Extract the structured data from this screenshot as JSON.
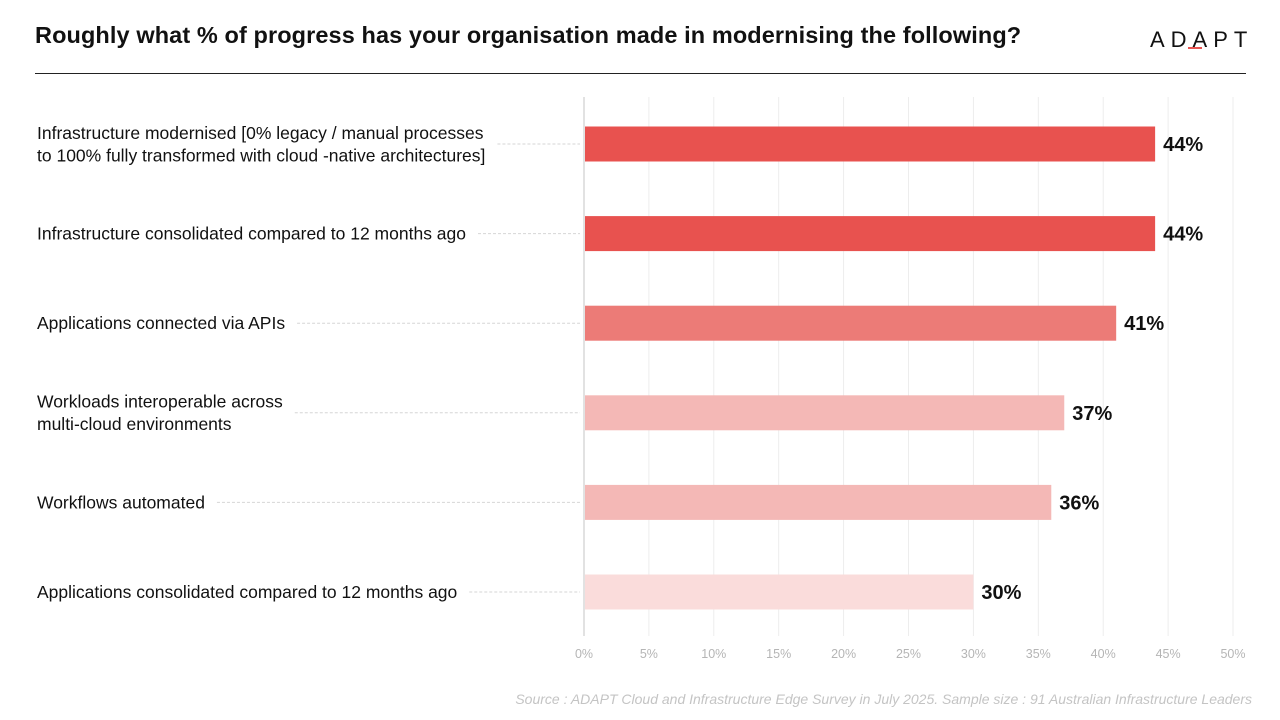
{
  "header": {
    "title": "Roughly what % of progress has your organisation made in modernising the following?",
    "logo": "ADAPT"
  },
  "chart_data": {
    "type": "bar",
    "orientation": "horizontal",
    "title": "Roughly what % of progress has your organisation made in modernising the following?",
    "categories": [
      [
        "Infrastructure modernised [0% legacy / manual processes",
        "to 100% fully transformed with cloud -native architectures]"
      ],
      [
        "Infrastructure consolidated compared to 12 months ago"
      ],
      [
        "Applications connected via APIs"
      ],
      [
        "Workloads interoperable across",
        "multi-cloud environments"
      ],
      [
        "Workflows automated"
      ],
      [
        "Applications consolidated compared to 12 months ago"
      ]
    ],
    "values": [
      44,
      44,
      41,
      37,
      36,
      30
    ],
    "value_labels": [
      "44%",
      "44%",
      "41%",
      "37%",
      "36%",
      "30%"
    ],
    "bar_colors": [
      "#e8524f",
      "#e8524f",
      "#ec7b77",
      "#f4b8b6",
      "#f4b8b6",
      "#fadcdb"
    ],
    "xlim": [
      0,
      50
    ],
    "xticks": [
      0,
      5,
      10,
      15,
      20,
      25,
      30,
      35,
      40,
      45,
      50
    ],
    "xtick_labels": [
      "0%",
      "5%",
      "10%",
      "15%",
      "20%",
      "25%",
      "30%",
      "35%",
      "40%",
      "45%",
      "50%"
    ],
    "grid": true,
    "legend": "none"
  },
  "footer": {
    "source": "Source : ADAPT Cloud and Infrastructure Edge Survey in July 2025. Sample size : 91 Australian Infrastructure Leaders"
  }
}
